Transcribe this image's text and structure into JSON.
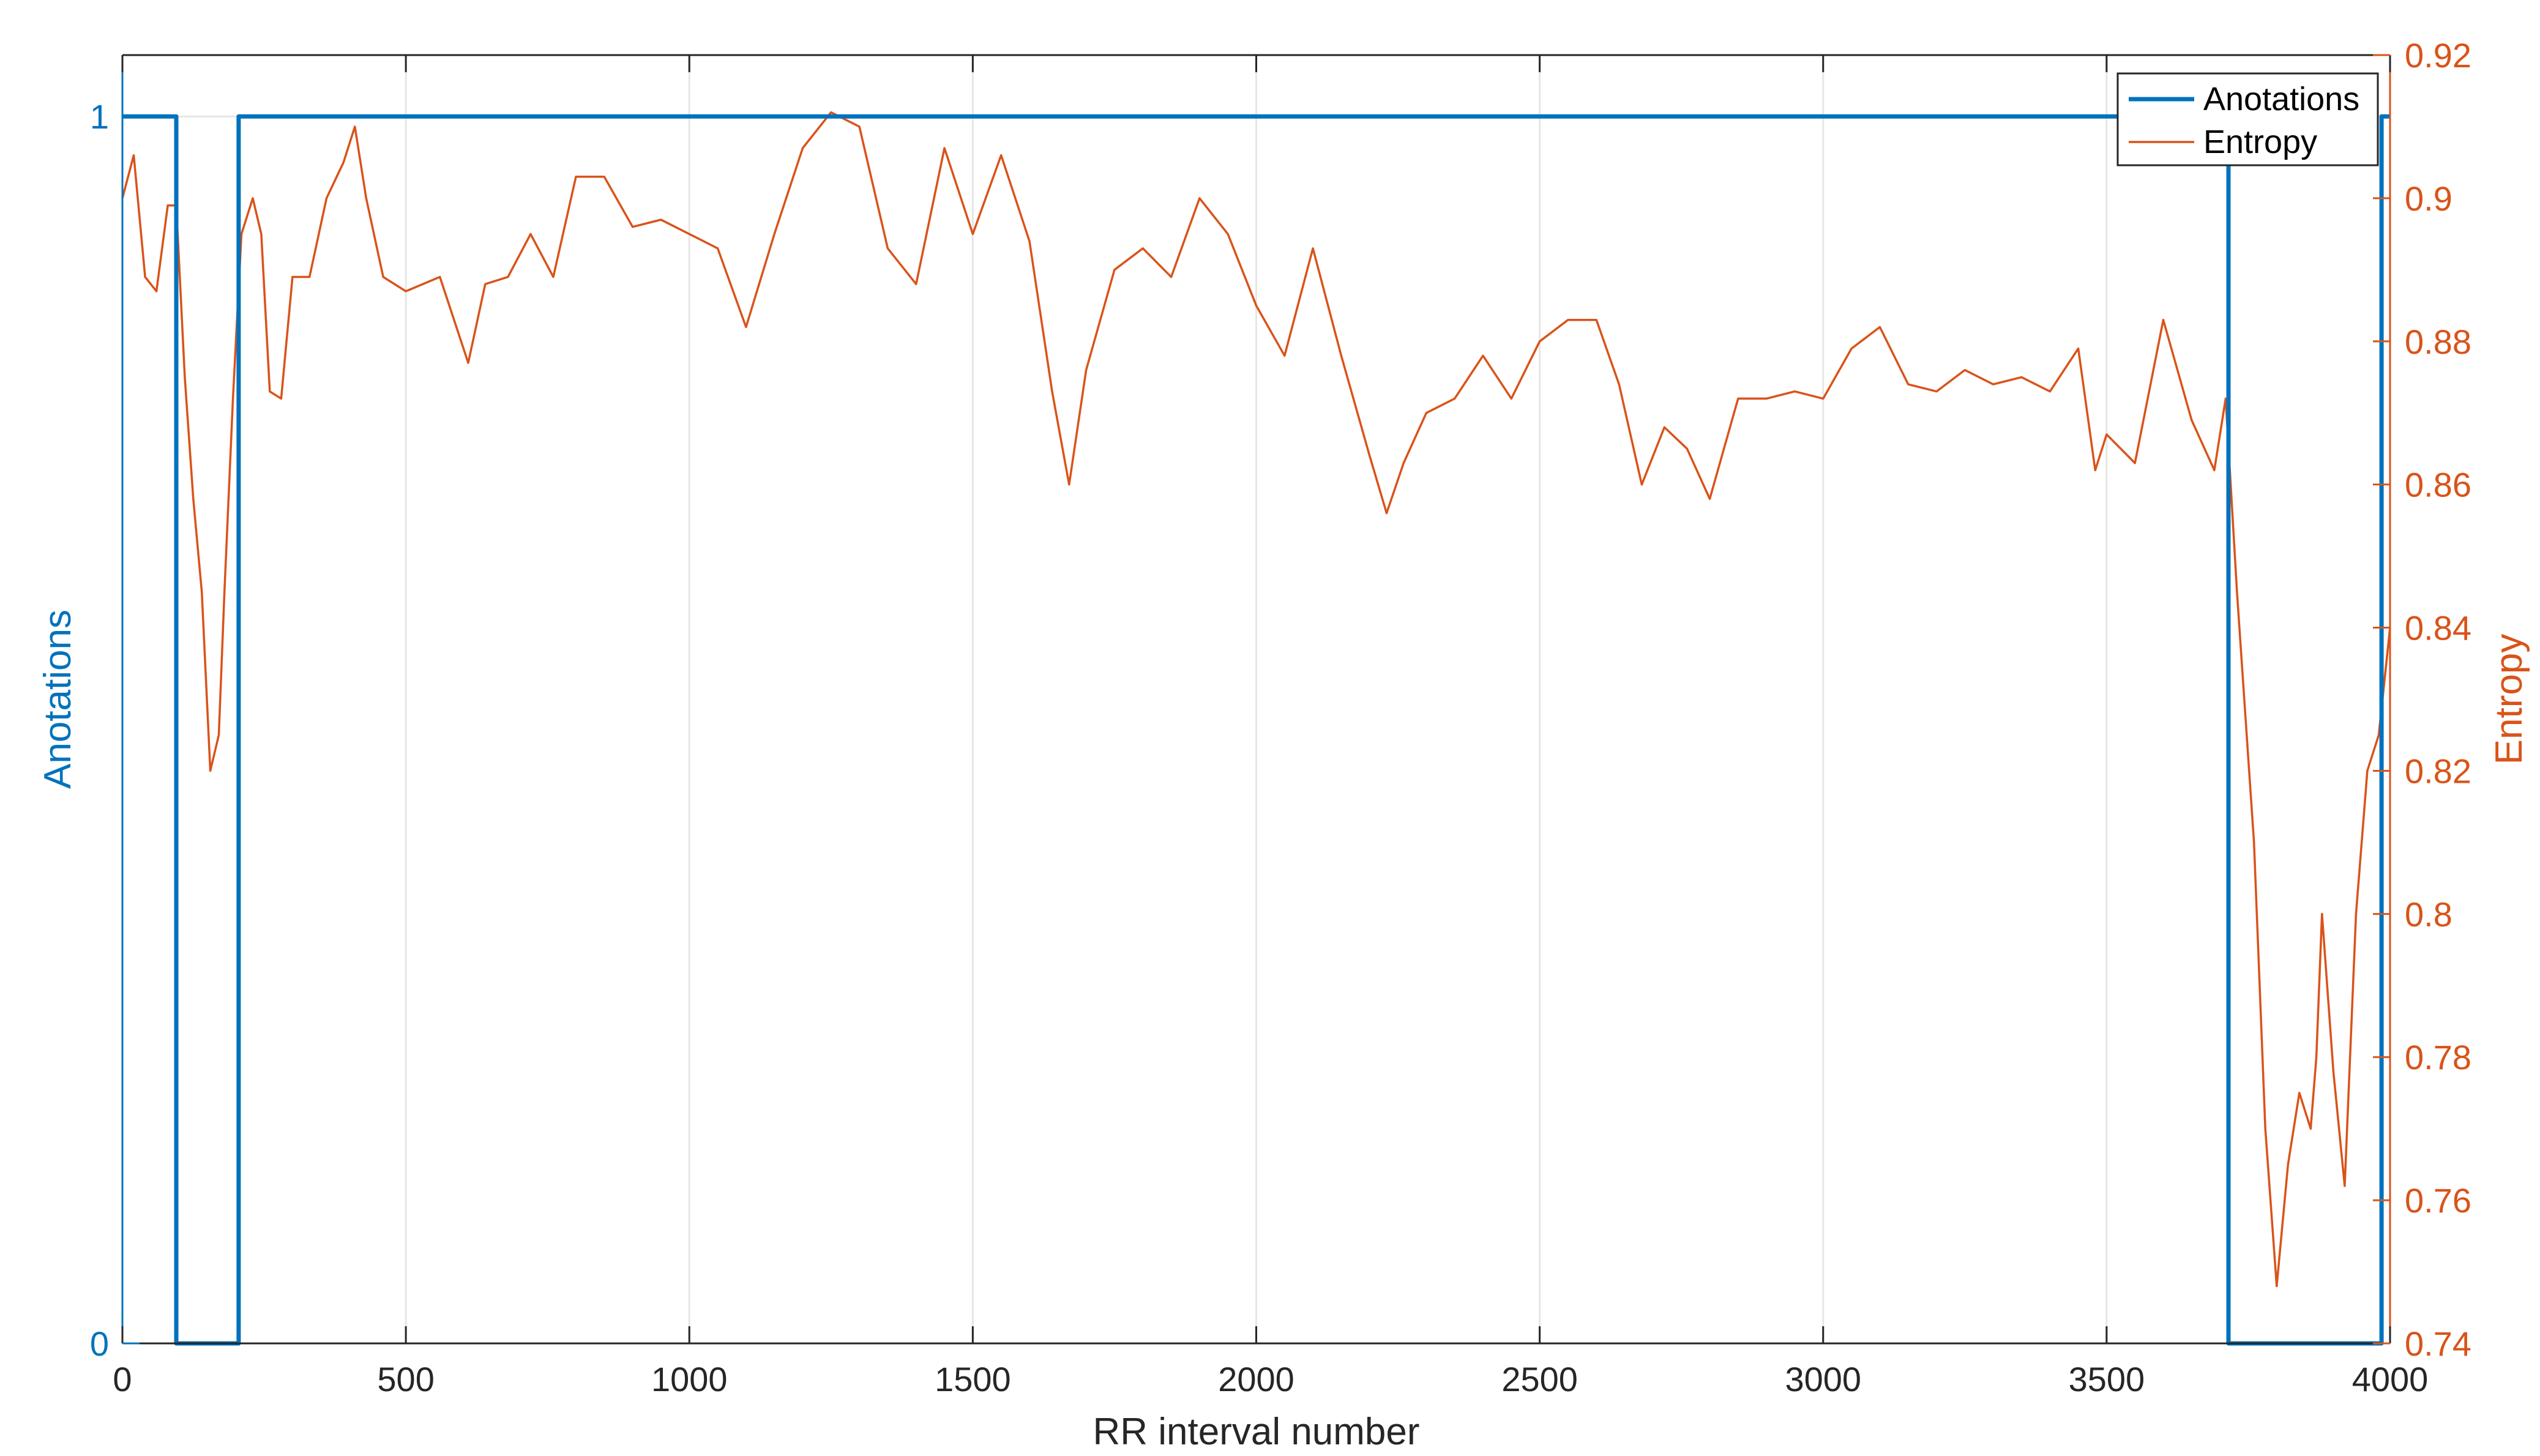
{
  "chart_data": {
    "type": "line",
    "title": "",
    "xlabel": "RR interval number",
    "ylabel_left": "Anotations",
    "ylabel_right": "Entropy",
    "xlim": [
      0,
      4000
    ],
    "ylim_left": [
      0,
      1.05
    ],
    "ylim_right": [
      0.74,
      0.92
    ],
    "grid": true,
    "legend_position": "top-right",
    "x_ticks": [
      "0",
      "500",
      "1000",
      "1500",
      "2000",
      "2500",
      "3000",
      "3500",
      "4000"
    ],
    "y_ticks_left": [
      "0",
      "1"
    ],
    "y_ticks_right": [
      "0.74",
      "0.76",
      "0.78",
      "0.8",
      "0.82",
      "0.84",
      "0.86",
      "0.88",
      "0.9",
      "0.92"
    ],
    "colors": {
      "left_axis": "#0072BD",
      "right_axis": "#D95319",
      "grid": "#e6e6e6",
      "axes": "#262626"
    },
    "series": [
      {
        "name": "Anotations",
        "axis": "left",
        "color": "#0072BD",
        "step": true,
        "x": [
          0,
          95,
          95,
          205,
          205,
          3715,
          3715,
          3985,
          3985,
          4000
        ],
        "y": [
          1,
          1,
          0,
          0,
          1,
          1,
          0,
          0,
          1,
          1
        ]
      },
      {
        "name": "Entropy",
        "axis": "right",
        "color": "#D95319",
        "step": false,
        "x": [
          0,
          20,
          40,
          60,
          80,
          95,
          110,
          125,
          140,
          155,
          170,
          180,
          195,
          210,
          230,
          245,
          260,
          280,
          300,
          330,
          360,
          390,
          410,
          430,
          460,
          500,
          560,
          610,
          640,
          680,
          720,
          760,
          800,
          850,
          900,
          950,
          1000,
          1050,
          1100,
          1150,
          1200,
          1250,
          1300,
          1350,
          1400,
          1450,
          1500,
          1550,
          1600,
          1640,
          1670,
          1700,
          1750,
          1800,
          1850,
          1900,
          1950,
          2000,
          2050,
          2100,
          2150,
          2200,
          2230,
          2260,
          2300,
          2350,
          2400,
          2450,
          2500,
          2550,
          2600,
          2640,
          2680,
          2720,
          2760,
          2800,
          2850,
          2900,
          2950,
          3000,
          3050,
          3100,
          3150,
          3200,
          3250,
          3300,
          3350,
          3400,
          3450,
          3480,
          3500,
          3550,
          3600,
          3650,
          3690,
          3710,
          3730,
          3760,
          3780,
          3800,
          3820,
          3840,
          3860,
          3870,
          3880,
          3900,
          3920,
          3940,
          3960,
          3980,
          4000
        ],
        "y": [
          0.9,
          0.906,
          0.889,
          0.887,
          0.899,
          0.899,
          0.875,
          0.858,
          0.845,
          0.82,
          0.825,
          0.845,
          0.872,
          0.895,
          0.9,
          0.895,
          0.873,
          0.872,
          0.889,
          0.889,
          0.9,
          0.905,
          0.91,
          0.9,
          0.889,
          0.887,
          0.889,
          0.877,
          0.888,
          0.889,
          0.895,
          0.889,
          0.903,
          0.903,
          0.896,
          0.897,
          0.895,
          0.893,
          0.882,
          0.895,
          0.907,
          0.912,
          0.91,
          0.893,
          0.888,
          0.907,
          0.895,
          0.906,
          0.894,
          0.873,
          0.86,
          0.876,
          0.89,
          0.893,
          0.889,
          0.9,
          0.895,
          0.885,
          0.878,
          0.893,
          0.878,
          0.864,
          0.856,
          0.863,
          0.87,
          0.872,
          0.878,
          0.872,
          0.88,
          0.883,
          0.883,
          0.874,
          0.86,
          0.868,
          0.865,
          0.858,
          0.872,
          0.872,
          0.873,
          0.872,
          0.879,
          0.882,
          0.874,
          0.873,
          0.876,
          0.874,
          0.875,
          0.873,
          0.879,
          0.862,
          0.867,
          0.863,
          0.883,
          0.869,
          0.862,
          0.872,
          0.845,
          0.81,
          0.77,
          0.748,
          0.765,
          0.775,
          0.77,
          0.78,
          0.8,
          0.778,
          0.762,
          0.8,
          0.82,
          0.825,
          0.84
        ]
      }
    ]
  }
}
